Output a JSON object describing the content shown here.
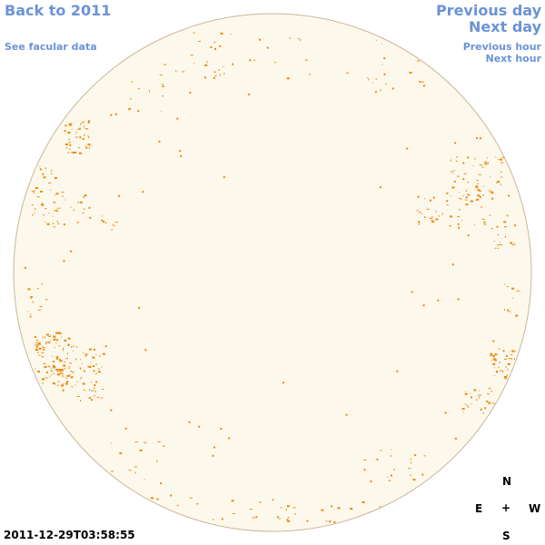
{
  "nav": {
    "back_label": "Back to 2011",
    "facular_label": "See facular data",
    "prev_day_label": "Previous day",
    "next_day_label": "Next day",
    "prev_hour_label": "Previous hour",
    "next_hour_label": "Next hour"
  },
  "timestamp": "2011-12-29T03:58:55",
  "compass": {
    "north": "N",
    "east": "E",
    "center": "+",
    "west": "W",
    "south": "S"
  },
  "colors": {
    "disk_fill": "#fdf8ec",
    "disk_edge": "#c8b89a",
    "feature": "#e98a0c",
    "link": "#6b93d6"
  }
}
